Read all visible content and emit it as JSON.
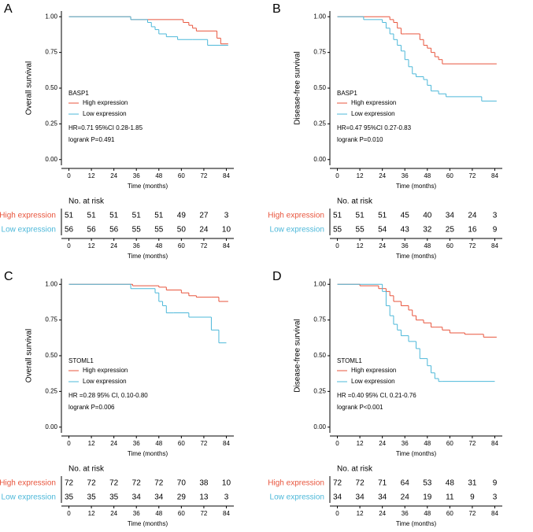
{
  "chart_data": [
    {
      "type": "step",
      "panel_label": "A",
      "ylabel": "Overall survival",
      "xlabel": "Time (months)",
      "xlim": [
        -4,
        88
      ],
      "ylim": [
        -0.04,
        1.04
      ],
      "xticks": [
        0,
        12,
        24,
        36,
        48,
        60,
        72,
        84
      ],
      "yticks": [
        {
          "value": 0,
          "label": "0.00"
        },
        0.25,
        {
          "value": 0.5,
          "label": "0.50"
        },
        0.75,
        {
          "value": 1,
          "label": "1.00"
        }
      ],
      "legend_title": "BASP1",
      "annotations": [
        "HR=0.71 95%CI 0.28-1.85",
        "logrank P=0.491"
      ],
      "series": [
        {
          "name": "High expression",
          "color": "#e8553d",
          "x": [
            0,
            33,
            61,
            64,
            66,
            68,
            79,
            81,
            85
          ],
          "values": [
            1,
            0.98,
            0.96,
            0.94,
            0.92,
            0.9,
            0.85,
            0.81,
            0.81
          ]
        },
        {
          "name": "Low expression",
          "color": "#4db8d9",
          "x": [
            0,
            33,
            42,
            44,
            46,
            48,
            52,
            58,
            66,
            74,
            85
          ],
          "values": [
            1,
            0.98,
            0.96,
            0.93,
            0.91,
            0.88,
            0.86,
            0.84,
            0.84,
            0.8,
            0.8
          ]
        }
      ],
      "risk_table": {
        "title": "No. at risk",
        "xlabel": "Time (months)",
        "xticks": [
          0,
          12,
          24,
          36,
          48,
          60,
          72,
          84
        ],
        "rows": [
          {
            "name": "High expression",
            "color": "#e8553d",
            "values": [
              51,
              51,
              51,
              51,
              51,
              49,
              27,
              3
            ]
          },
          {
            "name": "Low expression",
            "color": "#4db8d9",
            "values": [
              56,
              56,
              56,
              55,
              55,
              50,
              24,
              10
            ]
          }
        ]
      }
    },
    {
      "type": "step",
      "panel_label": "B",
      "ylabel": "Disease-free survival",
      "xlabel": "Time (months)",
      "xlim": [
        -4,
        88
      ],
      "ylim": [
        -0.04,
        1.04
      ],
      "xticks": [
        0,
        12,
        24,
        36,
        48,
        60,
        72,
        84
      ],
      "yticks": [
        {
          "value": 0,
          "label": "0.00"
        },
        0.25,
        {
          "value": 0.5,
          "label": "0.50"
        },
        0.75,
        {
          "value": 1,
          "label": "1.00"
        }
      ],
      "legend_title": "BASP1",
      "annotations": [
        "HR=0.47 95%CI 0.27-0.83",
        "logrank P=0.010"
      ],
      "series": [
        {
          "name": "High expression",
          "color": "#e8553d",
          "x": [
            0,
            28,
            30,
            32,
            34,
            36,
            44,
            46,
            48,
            50,
            52,
            54,
            56,
            85
          ],
          "values": [
            1,
            0.98,
            0.96,
            0.92,
            0.88,
            0.88,
            0.84,
            0.8,
            0.78,
            0.75,
            0.72,
            0.7,
            0.67,
            0.67
          ]
        },
        {
          "name": "Low expression",
          "color": "#4db8d9",
          "x": [
            0,
            14,
            24,
            26,
            28,
            30,
            32,
            34,
            36,
            38,
            40,
            42,
            46,
            48,
            50,
            54,
            58,
            77,
            85
          ],
          "values": [
            1,
            0.98,
            0.96,
            0.92,
            0.88,
            0.84,
            0.8,
            0.76,
            0.7,
            0.65,
            0.6,
            0.58,
            0.56,
            0.52,
            0.48,
            0.46,
            0.44,
            0.41,
            0.41
          ]
        }
      ],
      "risk_table": {
        "title": "No. at risk",
        "xlabel": "Time (months)",
        "xticks": [
          0,
          12,
          24,
          36,
          48,
          60,
          72,
          84
        ],
        "rows": [
          {
            "name": "High expression",
            "color": "#e8553d",
            "values": [
              51,
              51,
              51,
              45,
              40,
              34,
              24,
              3
            ]
          },
          {
            "name": "Low expression",
            "color": "#4db8d9",
            "values": [
              55,
              55,
              54,
              43,
              32,
              25,
              16,
              9
            ]
          }
        ]
      }
    },
    {
      "type": "step",
      "panel_label": "C",
      "ylabel": "Overall survival",
      "xlabel": "Time (months)",
      "xlim": [
        -4,
        88
      ],
      "ylim": [
        -0.04,
        1.04
      ],
      "xticks": [
        0,
        12,
        24,
        36,
        48,
        60,
        72,
        84
      ],
      "yticks": [
        {
          "value": 0,
          "label": "0.00"
        },
        0.25,
        {
          "value": 0.5,
          "label": "0.50"
        },
        0.75,
        {
          "value": 1,
          "label": "1.00"
        }
      ],
      "legend_title": "STOML1",
      "annotations": [
        "HR =0.28 95% CI, 0.10-0.80",
        "logrank P=0.006"
      ],
      "series": [
        {
          "name": "High expression",
          "color": "#e8553d",
          "x": [
            0,
            34,
            48,
            52,
            60,
            64,
            68,
            76,
            80,
            85
          ],
          "values": [
            1,
            0.99,
            0.98,
            0.96,
            0.94,
            0.92,
            0.91,
            0.91,
            0.88,
            0.88
          ]
        },
        {
          "name": "Low expression",
          "color": "#4db8d9",
          "x": [
            0,
            33,
            46,
            48,
            50,
            52,
            56,
            64,
            76,
            80,
            84
          ],
          "values": [
            1,
            0.97,
            0.94,
            0.88,
            0.85,
            0.8,
            0.8,
            0.77,
            0.68,
            0.59,
            0.59
          ]
        }
      ],
      "risk_table": {
        "title": "No. at risk",
        "xlabel": "Time (months)",
        "xticks": [
          0,
          12,
          24,
          36,
          48,
          60,
          72,
          84
        ],
        "rows": [
          {
            "name": "High expression",
            "color": "#e8553d",
            "values": [
              72,
              72,
              72,
              72,
              72,
              70,
              38,
              10
            ]
          },
          {
            "name": "Low expression",
            "color": "#4db8d9",
            "values": [
              35,
              35,
              35,
              34,
              34,
              29,
              13,
              3
            ]
          }
        ]
      }
    },
    {
      "type": "step",
      "panel_label": "D",
      "ylabel": "Disease-free survival",
      "xlabel": "Time (months)",
      "xlim": [
        -4,
        88
      ],
      "ylim": [
        -0.04,
        1.04
      ],
      "xticks": [
        0,
        12,
        24,
        36,
        48,
        60,
        72,
        84
      ],
      "yticks": [
        {
          "value": 0,
          "label": "0.00"
        },
        0.25,
        {
          "value": 0.5,
          "label": "0.50"
        },
        0.75,
        {
          "value": 1,
          "label": "1.00"
        }
      ],
      "legend_title": "STOML1",
      "annotations": [
        "HR =0.40 95% CI, 0.21-0.76",
        "logrank P<0.001"
      ],
      "series": [
        {
          "name": "High expression",
          "color": "#e8553d",
          "x": [
            0,
            12,
            22,
            26,
            28,
            30,
            34,
            38,
            40,
            42,
            46,
            50,
            52,
            56,
            60,
            68,
            78,
            85
          ],
          "values": [
            1,
            0.99,
            0.97,
            0.95,
            0.92,
            0.88,
            0.85,
            0.82,
            0.78,
            0.75,
            0.73,
            0.7,
            0.7,
            0.68,
            0.66,
            0.65,
            0.63,
            0.63
          ]
        },
        {
          "name": "Low expression",
          "color": "#4db8d9",
          "x": [
            0,
            24,
            26,
            28,
            30,
            32,
            34,
            38,
            42,
            44,
            48,
            50,
            52,
            54,
            56,
            84
          ],
          "values": [
            1,
            0.95,
            0.85,
            0.78,
            0.72,
            0.68,
            0.64,
            0.6,
            0.55,
            0.48,
            0.43,
            0.38,
            0.34,
            0.32,
            0.32,
            0.32
          ]
        }
      ],
      "risk_table": {
        "title": "No. at risk",
        "xlabel": "Time (months)",
        "xticks": [
          0,
          12,
          24,
          36,
          48,
          60,
          72,
          84
        ],
        "rows": [
          {
            "name": "High expression",
            "color": "#e8553d",
            "values": [
              72,
              72,
              71,
              64,
              53,
              48,
              31,
              9
            ]
          },
          {
            "name": "Low expression",
            "color": "#4db8d9",
            "values": [
              34,
              34,
              34,
              24,
              19,
              11,
              9,
              3
            ]
          }
        ]
      }
    }
  ]
}
